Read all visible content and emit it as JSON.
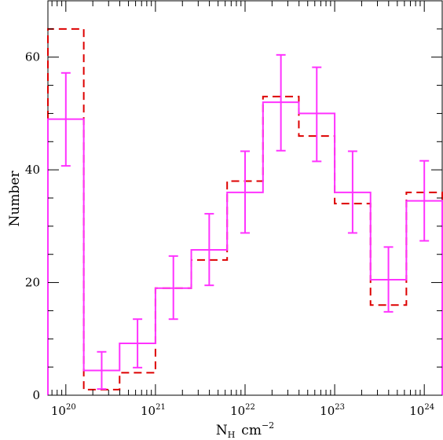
{
  "chart_data": {
    "type": "histogram",
    "xlabel": {
      "base": "N",
      "sub": "H",
      "unit": "cm",
      "exp": "−2"
    },
    "ylabel": "Number",
    "xscale": "log",
    "xlim": [
      19.8,
      24.2
    ],
    "ylim": [
      0,
      70
    ],
    "x_ticks": [
      {
        "value": 20,
        "base": "10",
        "exp": "20"
      },
      {
        "value": 21,
        "base": "10",
        "exp": "21"
      },
      {
        "value": 22,
        "base": "10",
        "exp": "22"
      },
      {
        "value": 23,
        "base": "10",
        "exp": "23"
      },
      {
        "value": 24,
        "base": "10",
        "exp": "24"
      }
    ],
    "y_ticks": [
      0,
      20,
      40,
      60
    ],
    "bin_edges": [
      19.8,
      20.2,
      20.6,
      21.0,
      21.4,
      21.8,
      22.2,
      22.6,
      23.0,
      23.4,
      23.8,
      24.2
    ],
    "series": [
      {
        "style": "solid",
        "color": "#ff33ff",
        "values": [
          49,
          4.4,
          9.2,
          19,
          25.8,
          36,
          52,
          50,
          36,
          20.5,
          34.5
        ],
        "err_low": [
          40.7,
          1.1,
          4.9,
          13.5,
          19.5,
          28.8,
          43.4,
          41.5,
          28.8,
          14.8,
          27.4
        ],
        "err_high": [
          57.2,
          7.7,
          13.5,
          24.7,
          32.2,
          43.3,
          60.4,
          58.2,
          43.3,
          26.3,
          41.6
        ]
      },
      {
        "style": "dashed",
        "color": "#dd0000",
        "values": [
          65,
          1,
          4,
          19,
          24,
          38,
          53,
          46,
          34,
          16,
          36
        ]
      }
    ]
  }
}
